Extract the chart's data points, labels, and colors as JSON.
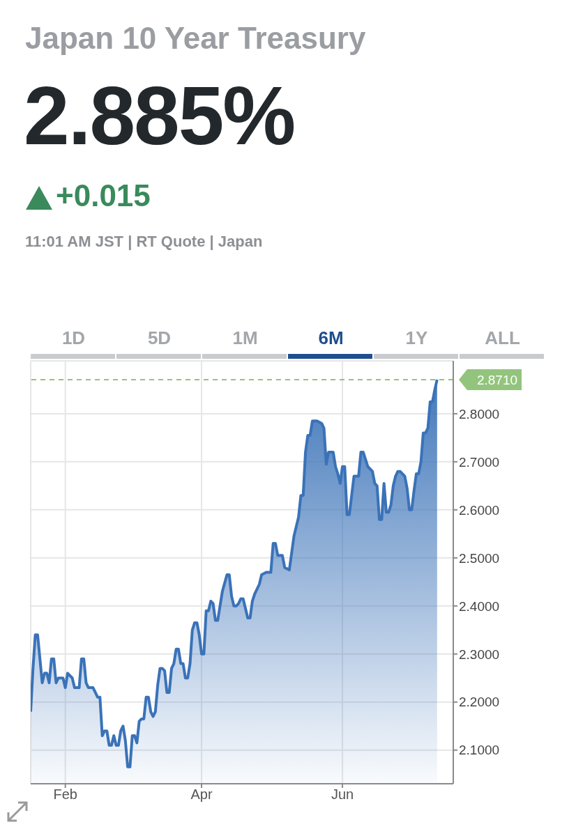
{
  "chart_data": {
    "type": "area",
    "title": "Japan 10 Year Treasury",
    "subtitle": "2.885%",
    "annotations": [
      "+0.015",
      "11:01 AM JST | RT Quote | Japan",
      "1D",
      "5D",
      "1M",
      "6M",
      "1Y",
      "ALL"
    ],
    "x": [
      "--01-17",
      "--01-18",
      "--01-19",
      "--01-20",
      "--01-21",
      "--01-22",
      "--01-23",
      "--01-24",
      "--01-25",
      "--01-26",
      "--01-27",
      "--01-28",
      "--01-29",
      "--01-31",
      "--02-01",
      "--02-02",
      "--02-04",
      "--02-05",
      "--02-07",
      "--02-08",
      "--02-09",
      "--02-10",
      "--02-11",
      "--02-13",
      "--02-14",
      "--02-15",
      "--02-16",
      "--02-17",
      "--02-18",
      "--02-19",
      "--02-20",
      "--02-21",
      "--02-22",
      "--02-23",
      "--02-24",
      "--02-25",
      "--02-26",
      "--02-27",
      "--02-28",
      "--03-01",
      "--03-02",
      "--03-03",
      "--03-04",
      "--03-05",
      "--03-06",
      "--03-07",
      "--03-08",
      "--03-09",
      "--03-10",
      "--03-11",
      "--03-12",
      "--03-13",
      "--03-14",
      "--03-15",
      "--03-16",
      "--03-17",
      "--03-18",
      "--03-19",
      "--03-20",
      "--03-21",
      "--03-22",
      "--03-23",
      "--03-24",
      "--03-25",
      "--03-26",
      "--03-27",
      "--03-28",
      "--03-29",
      "--03-30",
      "--03-31",
      "--04-01",
      "--04-02",
      "--04-03",
      "--04-04",
      "--04-05",
      "--04-06",
      "--04-07",
      "--04-08",
      "--04-09",
      "--04-10",
      "--04-12",
      "--04-13",
      "--04-14",
      "--04-15",
      "--04-16",
      "--04-17",
      "--04-18",
      "--04-19",
      "--04-20",
      "--04-21",
      "--04-22",
      "--04-23",
      "--04-24",
      "--04-26",
      "--04-27",
      "--04-29",
      "--05-01",
      "--05-02",
      "--05-03",
      "--05-04",
      "--05-06",
      "--05-07",
      "--05-09",
      "--05-10",
      "--05-11",
      "--05-13",
      "--05-14",
      "--05-15",
      "--05-16",
      "--05-17",
      "--05-18",
      "--05-19",
      "--05-21",
      "--05-23",
      "--05-24",
      "--05-25",
      "--05-26",
      "--05-28",
      "--05-29",
      "--05-30",
      "--05-31",
      "--06-01",
      "--06-02",
      "--06-03",
      "--06-04",
      "--06-05",
      "--06-06",
      "--06-08",
      "--06-09",
      "--06-10",
      "--06-11",
      "--06-12",
      "--06-14",
      "--06-15",
      "--06-16",
      "--06-17",
      "--06-18",
      "--06-19",
      "--06-20",
      "--06-21",
      "--06-22",
      "--06-23",
      "--06-24",
      "--06-25",
      "--06-26",
      "--06-27",
      "--06-28",
      "--06-29",
      "--06-30",
      "--07-01",
      "--07-02",
      "--07-03",
      "--07-04",
      "--07-05",
      "--07-06",
      "--07-07",
      "--07-08",
      "--07-09",
      "--07-10",
      "--07-11",
      "--07-12"
    ],
    "series": [
      {
        "color": "#3a72b8",
        "values": [
          2.18,
          2.27,
          2.34,
          2.34,
          2.29,
          2.24,
          2.26,
          2.26,
          2.24,
          2.29,
          2.29,
          2.24,
          2.25,
          2.25,
          2.23,
          2.26,
          2.25,
          2.23,
          2.23,
          2.29,
          2.29,
          2.24,
          2.23,
          2.23,
          2.22,
          2.21,
          2.21,
          2.13,
          2.14,
          2.14,
          2.11,
          2.11,
          2.13,
          2.11,
          2.11,
          2.14,
          2.15,
          2.12,
          2.065,
          2.065,
          2.13,
          2.13,
          2.115,
          2.16,
          2.165,
          2.165,
          2.21,
          2.21,
          2.18,
          2.17,
          2.18,
          2.235,
          2.27,
          2.27,
          2.265,
          2.22,
          2.22,
          2.27,
          2.28,
          2.31,
          2.31,
          2.28,
          2.28,
          2.25,
          2.25,
          2.28,
          2.35,
          2.365,
          2.365,
          2.34,
          2.3,
          2.3,
          2.39,
          2.39,
          2.41,
          2.405,
          2.37,
          2.37,
          2.4,
          2.43,
          2.465,
          2.465,
          2.42,
          2.4,
          2.4,
          2.405,
          2.415,
          2.415,
          2.395,
          2.375,
          2.375,
          2.41,
          2.425,
          2.445,
          2.465,
          2.47,
          2.47,
          2.53,
          2.53,
          2.505,
          2.505,
          2.48,
          2.475,
          2.51,
          2.545,
          2.585,
          2.63,
          2.63,
          2.72,
          2.755,
          2.755,
          2.785,
          2.785,
          2.78,
          2.77,
          2.695,
          2.72,
          2.72,
          2.69,
          2.675,
          2.655,
          2.69,
          2.69,
          2.59,
          2.59,
          2.63,
          2.67,
          2.67,
          2.72,
          2.72,
          2.705,
          2.69,
          2.68,
          2.655,
          2.65,
          2.58,
          2.58,
          2.655,
          2.595,
          2.595,
          2.61,
          2.65,
          2.67,
          2.68,
          2.68,
          2.675,
          2.67,
          2.645,
          2.6,
          2.6,
          2.64,
          2.675,
          2.675,
          2.7,
          2.76,
          2.76,
          2.77,
          2.825,
          2.825,
          2.85,
          2.871
        ]
      }
    ],
    "xlim": [
      "--01-17",
      "--07-19"
    ],
    "xticks": [
      {
        "value": "--02-01",
        "label": "Feb"
      },
      {
        "value": "--04-01",
        "label": "Apr"
      },
      {
        "value": "--06-01",
        "label": "Jun"
      }
    ],
    "ylim": [
      2.03,
      2.91
    ],
    "yticks": [
      {
        "value": 2.1,
        "label": "2.1000"
      },
      {
        "value": 2.2,
        "label": "2.2000"
      },
      {
        "value": 2.3,
        "label": "2.3000"
      },
      {
        "value": 2.4,
        "label": "2.4000"
      },
      {
        "value": 2.5,
        "label": "2.5000"
      },
      {
        "value": 2.6,
        "label": "2.6000"
      },
      {
        "value": 2.7,
        "label": "2.7000"
      },
      {
        "value": 2.8,
        "label": "2.8000"
      }
    ],
    "ref_lines": [
      {
        "axis": "y",
        "value": 2.871,
        "label": "2.8710",
        "color": "#93c47d",
        "line_style": "dashed"
      }
    ],
    "grid": true
  }
}
